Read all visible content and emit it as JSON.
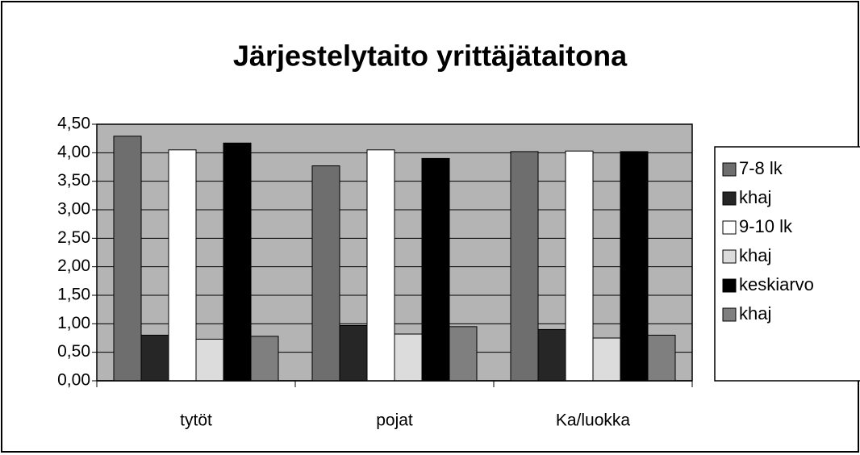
{
  "chart_data": {
    "type": "bar",
    "title": "Järjestelytaito yrittäjätaitona",
    "categories": [
      "tytöt",
      "pojat",
      "Ka/luokka"
    ],
    "series": [
      {
        "name": "7-8 lk",
        "color": "#6e6e6e",
        "values": [
          4.29,
          3.77,
          4.02
        ]
      },
      {
        "name": "khaj",
        "color": "#262626",
        "values": [
          0.8,
          0.97,
          0.9
        ]
      },
      {
        "name": "9-10 lk",
        "color": "#ffffff",
        "values": [
          4.05,
          4.05,
          4.03
        ]
      },
      {
        "name": "khaj",
        "color": "#dcdcdc",
        "values": [
          0.73,
          0.82,
          0.75
        ]
      },
      {
        "name": "keskiarvo",
        "color": "#000000",
        "values": [
          4.17,
          3.9,
          4.02
        ]
      },
      {
        "name": "khaj",
        "color": "#7f7f7f",
        "values": [
          0.78,
          0.95,
          0.8
        ]
      }
    ],
    "ylim": [
      0,
      4.5
    ],
    "yticks": [
      {
        "value": 0,
        "label": "0,00"
      },
      {
        "value": 0.5,
        "label": "0,50"
      },
      {
        "value": 1,
        "label": "1,00"
      },
      {
        "value": 1.5,
        "label": "1,50"
      },
      {
        "value": 2,
        "label": "2,00"
      },
      {
        "value": 2.5,
        "label": "2,50"
      },
      {
        "value": 3,
        "label": "3,00"
      },
      {
        "value": 3.5,
        "label": "3,50"
      },
      {
        "value": 4,
        "label": "4,00"
      },
      {
        "value": 4.5,
        "label": "4,50"
      }
    ],
    "grid": true,
    "plot_background": "#b4b4b4",
    "legend": "right"
  }
}
